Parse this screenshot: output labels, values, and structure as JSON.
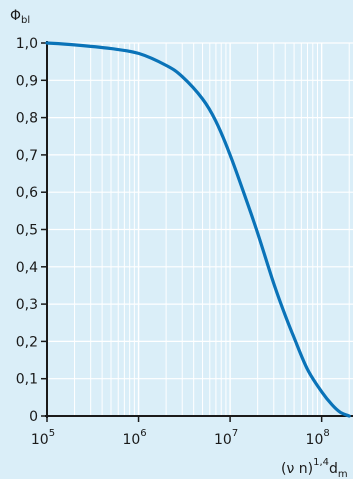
{
  "chart_data": {
    "type": "line",
    "ylabel": "Φ",
    "ylabel_sub": "bl",
    "xlabel": "(ν n)",
    "xlabel_sup": "1,4",
    "xlabel_tail": "d",
    "xlabel_tail_sub": "m",
    "x_scale": "log",
    "xlim": [
      100000,
      220000000
    ],
    "ylim": [
      0,
      1
    ],
    "grid": true,
    "x_ticks": [
      {
        "value": 100000,
        "base": "10",
        "exp": "5"
      },
      {
        "value": 1000000,
        "base": "10",
        "exp": "6"
      },
      {
        "value": 10000000,
        "base": "10",
        "exp": "7"
      },
      {
        "value": 100000000,
        "base": "10",
        "exp": "8"
      }
    ],
    "y_ticks": [
      {
        "value": 0,
        "label": "0"
      },
      {
        "value": 0.1,
        "label": "0,1"
      },
      {
        "value": 0.2,
        "label": "0,2"
      },
      {
        "value": 0.3,
        "label": "0,3"
      },
      {
        "value": 0.4,
        "label": "0,4"
      },
      {
        "value": 0.5,
        "label": "0,5"
      },
      {
        "value": 0.6,
        "label": "0,6"
      },
      {
        "value": 0.7,
        "label": "0,7"
      },
      {
        "value": 0.8,
        "label": "0,8"
      },
      {
        "value": 0.9,
        "label": "0,9"
      },
      {
        "value": 1,
        "label": "1,0"
      }
    ],
    "series": [
      {
        "color": "#0a73b8",
        "x": [
          100000,
          200000,
          500000,
          1000000,
          2000000,
          3000000,
          5000000,
          7000000,
          10000000,
          15000000,
          20000000,
          30000000,
          40000000,
          50000000,
          70000000,
          100000000,
          130000000,
          160000000,
          200000000
        ],
        "y": [
          1.0,
          0.995,
          0.985,
          0.972,
          0.94,
          0.91,
          0.85,
          0.79,
          0.7,
          0.58,
          0.49,
          0.355,
          0.27,
          0.21,
          0.125,
          0.065,
          0.03,
          0.01,
          0.0
        ]
      }
    ]
  }
}
